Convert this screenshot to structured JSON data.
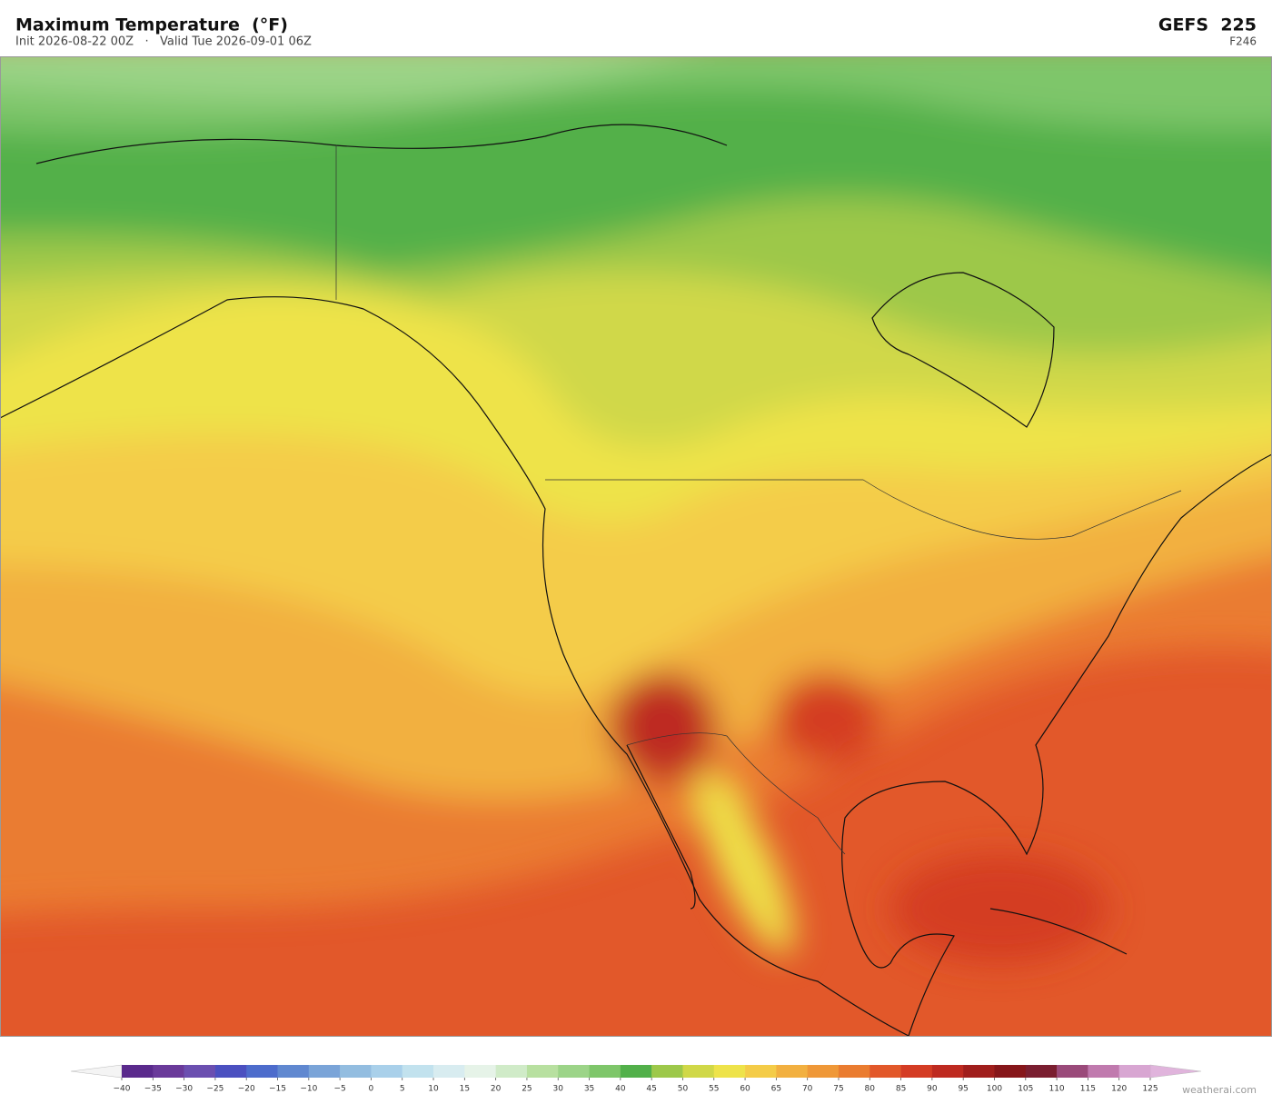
{
  "header": {
    "title": "Maximum Temperature  (°F)",
    "subtitle": "Init 2026-08-22 00Z   ·   Valid Tue 2026-09-01 06Z",
    "model": "GEFS  225",
    "forecast_hour": "F246"
  },
  "colorbar": {
    "ticks": [
      {
        "value": -40,
        "label": "−40"
      },
      {
        "value": -35,
        "label": "−35"
      },
      {
        "value": -30,
        "label": "−30"
      },
      {
        "value": -25,
        "label": "−25"
      },
      {
        "value": -20,
        "label": "−20"
      },
      {
        "value": -15,
        "label": "−15"
      },
      {
        "value": -10,
        "label": "−10"
      },
      {
        "value": -5,
        "label": "−5"
      },
      0,
      5,
      10,
      15,
      20,
      25,
      30,
      35,
      40,
      45,
      50,
      55,
      60,
      65,
      70,
      75,
      80,
      85,
      90,
      95,
      100,
      105,
      110,
      115,
      120,
      125
    ],
    "colors": [
      "#5a2a8c",
      "#6a3a9a",
      "#6b4fb0",
      "#4b50c0",
      "#4d6ccc",
      "#6088d0",
      "#7aa4d8",
      "#93bde0",
      "#a9d0ea",
      "#c2e2ee",
      "#d8ecf0",
      "#e6f3e8",
      "#d0ebc8",
      "#b8e0a0",
      "#9cd488",
      "#7ec66a",
      "#52b04a",
      "#9dc84a",
      "#d0d848",
      "#eee34a",
      "#f4cc48",
      "#f2b040",
      "#ef9838",
      "#ea7c30",
      "#e2582a",
      "#d43c24",
      "#be2a20",
      "#a01e1c",
      "#86161a",
      "#7a1e30",
      "#9a4a7a",
      "#c07aae",
      "#d8a6d2"
    ],
    "under_color": "#f4f4f4",
    "over_color": "#e0b4dc"
  },
  "footer": {
    "credit": "weatherai.com"
  }
}
